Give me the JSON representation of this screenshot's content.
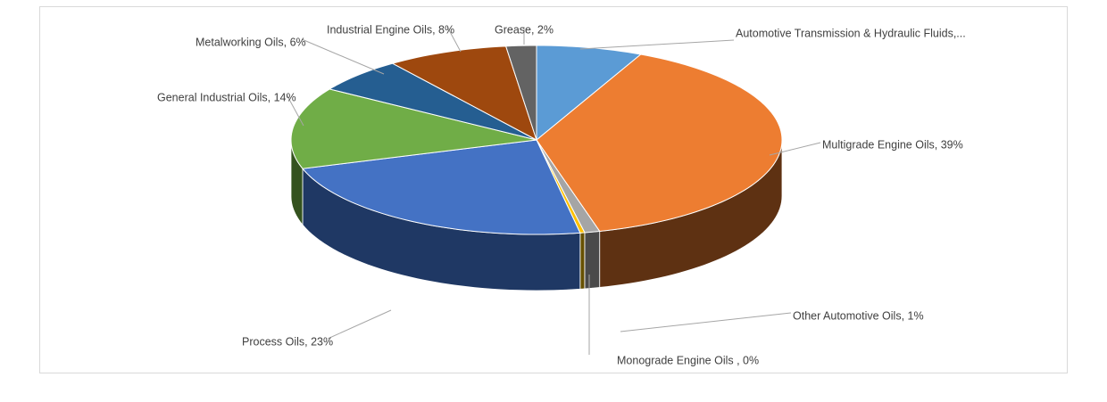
{
  "chart_data": {
    "type": "pie",
    "title": "",
    "legend": "none",
    "slices": [
      {
        "label": "Automotive Transmission & Hydraulic Fluids,...",
        "value": 7,
        "color": "#5b9bd5",
        "side": "#2e5a85"
      },
      {
        "label": "Multigrade Engine Oils, 39%",
        "value": 39,
        "color": "#ed7d31",
        "side": "#5e3112"
      },
      {
        "label": "Other Automotive Oils, 1%",
        "value": 1,
        "color": "#a5a5a5",
        "side": "#4a4a4a"
      },
      {
        "label": "Monograde Engine Oils , 0%",
        "value": 0.3,
        "color": "#ffc000",
        "side": "#665000"
      },
      {
        "label": "Process Oils, 23%",
        "value": 23,
        "color": "#4472c4",
        "side": "#1f3864"
      },
      {
        "label": "General Industrial Oils, 14%",
        "value": 14,
        "color": "#70ad47",
        "side": "#34521f"
      },
      {
        "label": "Metalworking Oils, 6%",
        "value": 6,
        "color": "#255e91",
        "side": "#12304b"
      },
      {
        "label": "Industrial Engine Oils, 8%",
        "value": 8,
        "color": "#9e480e",
        "side": "#4a2106"
      },
      {
        "label": "Grease, 2%",
        "value": 2,
        "color": "#636363",
        "side": "#303030"
      }
    ]
  }
}
